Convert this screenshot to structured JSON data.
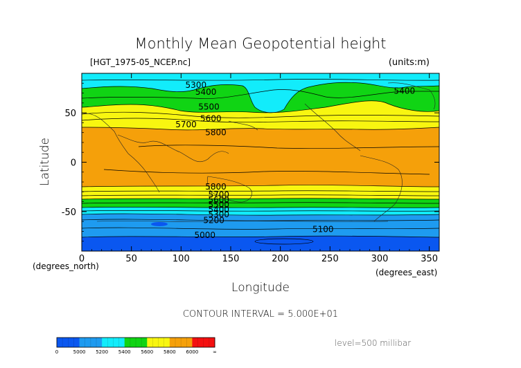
{
  "header": {
    "title": "Monthly Mean Geopotential height",
    "file": "[HGT_1975-05_NCEP.nc]",
    "units": "(units:m)"
  },
  "axes": {
    "ylabel": "Latitude",
    "xlabel": "Longitude",
    "x_unit_left": "(degrees_north)",
    "x_unit_right": "(degrees_east)"
  },
  "footer": {
    "contour_interval": "CONTOUR INTERVAL = 5.000E+01",
    "level": "level=500 millibar"
  },
  "colors": {
    "band_below_5000": "#0a57f0",
    "band_5000_5200": "#1e9bf0",
    "band_5200_5400": "#12ecfb",
    "band_5400_5600": "#10d414",
    "band_5600_5800": "#f8f610",
    "band_5800_6000": "#f5a00a",
    "band_above_6000": "#f41010"
  },
  "chart_data": {
    "type": "heatmap",
    "title": "Monthly Mean Geopotential height",
    "xlabel": "Longitude",
    "ylabel": "Latitude",
    "xlim": [
      0,
      360
    ],
    "ylim": [
      -90,
      90
    ],
    "x_ticks": [
      0,
      50,
      100,
      150,
      200,
      250,
      300,
      350
    ],
    "y_ticks": [
      50,
      0,
      -50
    ],
    "contour_interval": 50,
    "contour_labels": [
      {
        "text": "5300",
        "x": 115,
        "y": 78
      },
      {
        "text": "5400",
        "x": 125,
        "y": 71
      },
      {
        "text": "5400",
        "x": 325,
        "y": 72
      },
      {
        "text": "5500",
        "x": 128,
        "y": 56
      },
      {
        "text": "5600",
        "x": 130,
        "y": 44
      },
      {
        "text": "5700",
        "x": 105,
        "y": 38
      },
      {
        "text": "5800",
        "x": 135,
        "y": 30
      },
      {
        "text": "5800",
        "x": 135,
        "y": -25
      },
      {
        "text": "5700",
        "x": 138,
        "y": -33
      },
      {
        "text": "5600",
        "x": 138,
        "y": -38
      },
      {
        "text": "5500",
        "x": 138,
        "y": -43
      },
      {
        "text": "5400",
        "x": 138,
        "y": -48
      },
      {
        "text": "5300",
        "x": 138,
        "y": -53
      },
      {
        "text": "5200",
        "x": 133,
        "y": -59
      },
      {
        "text": "5100",
        "x": 243,
        "y": -68
      },
      {
        "text": "5000",
        "x": 124,
        "y": -74
      }
    ],
    "colorbar": {
      "labels": [
        "0",
        "5000",
        "5200",
        "5400",
        "5600",
        "5800",
        "6000",
        "∞"
      ],
      "bands": [
        {
          "from": 0,
          "to": 5000,
          "color": "#0a57f0"
        },
        {
          "from": 5000,
          "to": 5200,
          "color": "#1e9bf0"
        },
        {
          "from": 5200,
          "to": 5400,
          "color": "#12ecfb"
        },
        {
          "from": 5400,
          "to": 5600,
          "color": "#10d414"
        },
        {
          "from": 5600,
          "to": 5800,
          "color": "#f8f610"
        },
        {
          "from": 5800,
          "to": 6000,
          "color": "#f5a00a"
        },
        {
          "from": 6000,
          "to": "∞",
          "color": "#f41010"
        }
      ]
    }
  }
}
